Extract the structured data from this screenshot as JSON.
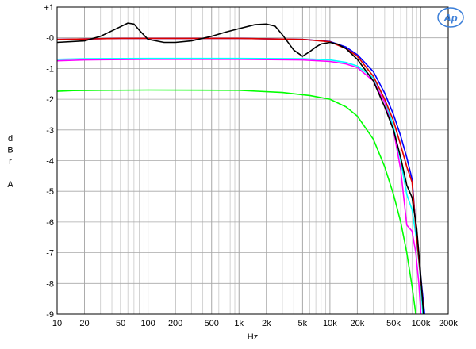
{
  "chart_data": {
    "type": "line",
    "x_scale": "log",
    "grid": true,
    "xlabel": "Hz",
    "ylabel_lines": [
      "d",
      "B",
      "r",
      "",
      "A"
    ],
    "xlim": [
      10,
      200000
    ],
    "ylim": [
      -9,
      1
    ],
    "x_ticks": [
      {
        "v": 10,
        "label": "10"
      },
      {
        "v": 20,
        "label": "20"
      },
      {
        "v": 50,
        "label": "50"
      },
      {
        "v": 100,
        "label": "100"
      },
      {
        "v": 200,
        "label": "200"
      },
      {
        "v": 500,
        "label": "500"
      },
      {
        "v": 1000,
        "label": "1k"
      },
      {
        "v": 2000,
        "label": "2k"
      },
      {
        "v": 5000,
        "label": "5k"
      },
      {
        "v": 10000,
        "label": "10k"
      },
      {
        "v": 20000,
        "label": "20k"
      },
      {
        "v": 50000,
        "label": "50k"
      },
      {
        "v": 100000,
        "label": "100k"
      },
      {
        "v": 200000,
        "label": "200k"
      }
    ],
    "y_ticks": [
      {
        "v": 1,
        "label": "+1"
      },
      {
        "v": 0,
        "label": "-0"
      },
      {
        "v": -1,
        "label": "-1"
      },
      {
        "v": -2,
        "label": "-2"
      },
      {
        "v": -3,
        "label": "-3"
      },
      {
        "v": -4,
        "label": "-4"
      },
      {
        "v": -5,
        "label": "-5"
      },
      {
        "v": -6,
        "label": "-6"
      },
      {
        "v": -7,
        "label": "-7"
      },
      {
        "v": -8,
        "label": "-8"
      },
      {
        "v": -9,
        "label": "-9"
      }
    ],
    "series": [
      {
        "color": "#00ff00",
        "points": [
          [
            10,
            -1.74
          ],
          [
            15,
            -1.72
          ],
          [
            30,
            -1.71
          ],
          [
            100,
            -1.7
          ],
          [
            1000,
            -1.71
          ],
          [
            3000,
            -1.78
          ],
          [
            6000,
            -1.88
          ],
          [
            10000,
            -2.0
          ],
          [
            15000,
            -2.25
          ],
          [
            20000,
            -2.55
          ],
          [
            30000,
            -3.3
          ],
          [
            40000,
            -4.2
          ],
          [
            50000,
            -5.1
          ],
          [
            60000,
            -6.0
          ],
          [
            70000,
            -7.0
          ],
          [
            80000,
            -8.1
          ],
          [
            88000,
            -9.0
          ]
        ]
      },
      {
        "color": "#ff00ff",
        "points": [
          [
            10,
            -0.75
          ],
          [
            20,
            -0.72
          ],
          [
            100,
            -0.7
          ],
          [
            1000,
            -0.7
          ],
          [
            5000,
            -0.72
          ],
          [
            10000,
            -0.77
          ],
          [
            15000,
            -0.85
          ],
          [
            20000,
            -0.97
          ],
          [
            30000,
            -1.4
          ],
          [
            40000,
            -2.1
          ],
          [
            50000,
            -3.0
          ],
          [
            60000,
            -4.3
          ],
          [
            70000,
            -6.1
          ],
          [
            80000,
            -6.3
          ],
          [
            88000,
            -7.0
          ],
          [
            95000,
            -8.0
          ],
          [
            100000,
            -9.0
          ]
        ]
      },
      {
        "color": "#00ffff",
        "points": [
          [
            10,
            -0.7
          ],
          [
            20,
            -0.68
          ],
          [
            100,
            -0.67
          ],
          [
            1000,
            -0.67
          ],
          [
            5000,
            -0.68
          ],
          [
            10000,
            -0.72
          ],
          [
            15000,
            -0.8
          ],
          [
            20000,
            -0.92
          ],
          [
            30000,
            -1.3
          ],
          [
            40000,
            -2.0
          ],
          [
            50000,
            -2.9
          ],
          [
            60000,
            -4.0
          ],
          [
            70000,
            -5.1
          ],
          [
            80000,
            -5.6
          ],
          [
            90000,
            -6.6
          ],
          [
            100000,
            -8.0
          ],
          [
            105000,
            -9.0
          ]
        ]
      },
      {
        "color": "#0000ff",
        "points": [
          [
            10,
            -0.05
          ],
          [
            50,
            -0.02
          ],
          [
            1000,
            -0.02
          ],
          [
            5000,
            -0.05
          ],
          [
            10000,
            -0.12
          ],
          [
            15000,
            -0.3
          ],
          [
            20000,
            -0.55
          ],
          [
            30000,
            -1.1
          ],
          [
            40000,
            -1.8
          ],
          [
            50000,
            -2.5
          ],
          [
            60000,
            -3.2
          ],
          [
            70000,
            -3.9
          ],
          [
            80000,
            -4.6
          ],
          [
            90000,
            -6.5
          ],
          [
            100000,
            -7.8
          ],
          [
            110000,
            -9.0
          ]
        ]
      },
      {
        "color": "#e00000",
        "points": [
          [
            10,
            -0.05
          ],
          [
            50,
            -0.02
          ],
          [
            1000,
            -0.02
          ],
          [
            5000,
            -0.05
          ],
          [
            10000,
            -0.13
          ],
          [
            15000,
            -0.35
          ],
          [
            20000,
            -0.6
          ],
          [
            30000,
            -1.25
          ],
          [
            40000,
            -2.0
          ],
          [
            50000,
            -2.7
          ],
          [
            60000,
            -3.5
          ],
          [
            70000,
            -4.2
          ],
          [
            80000,
            -4.7
          ],
          [
            90000,
            -6.5
          ],
          [
            100000,
            -7.9
          ],
          [
            108000,
            -9.0
          ]
        ]
      },
      {
        "color": "#000000",
        "points": [
          [
            10,
            -0.15
          ],
          [
            20,
            -0.1
          ],
          [
            30,
            0.05
          ],
          [
            45,
            0.3
          ],
          [
            60,
            0.48
          ],
          [
            70,
            0.45
          ],
          [
            80,
            0.25
          ],
          [
            100,
            -0.05
          ],
          [
            150,
            -0.15
          ],
          [
            200,
            -0.15
          ],
          [
            300,
            -0.1
          ],
          [
            500,
            0.05
          ],
          [
            700,
            0.18
          ],
          [
            1000,
            0.3
          ],
          [
            1500,
            0.43
          ],
          [
            2000,
            0.45
          ],
          [
            2500,
            0.38
          ],
          [
            3000,
            0.1
          ],
          [
            4000,
            -0.4
          ],
          [
            5000,
            -0.6
          ],
          [
            6000,
            -0.45
          ],
          [
            7000,
            -0.3
          ],
          [
            8000,
            -0.2
          ],
          [
            10000,
            -0.15
          ],
          [
            12000,
            -0.2
          ],
          [
            15000,
            -0.35
          ],
          [
            20000,
            -0.7
          ],
          [
            30000,
            -1.4
          ],
          [
            40000,
            -2.25
          ],
          [
            50000,
            -3.0
          ],
          [
            60000,
            -3.9
          ],
          [
            70000,
            -4.8
          ],
          [
            80000,
            -5.2
          ],
          [
            90000,
            -6.2
          ],
          [
            100000,
            -7.8
          ],
          [
            107000,
            -9.0
          ]
        ]
      }
    ]
  },
  "logo": {
    "text": "Ap"
  }
}
